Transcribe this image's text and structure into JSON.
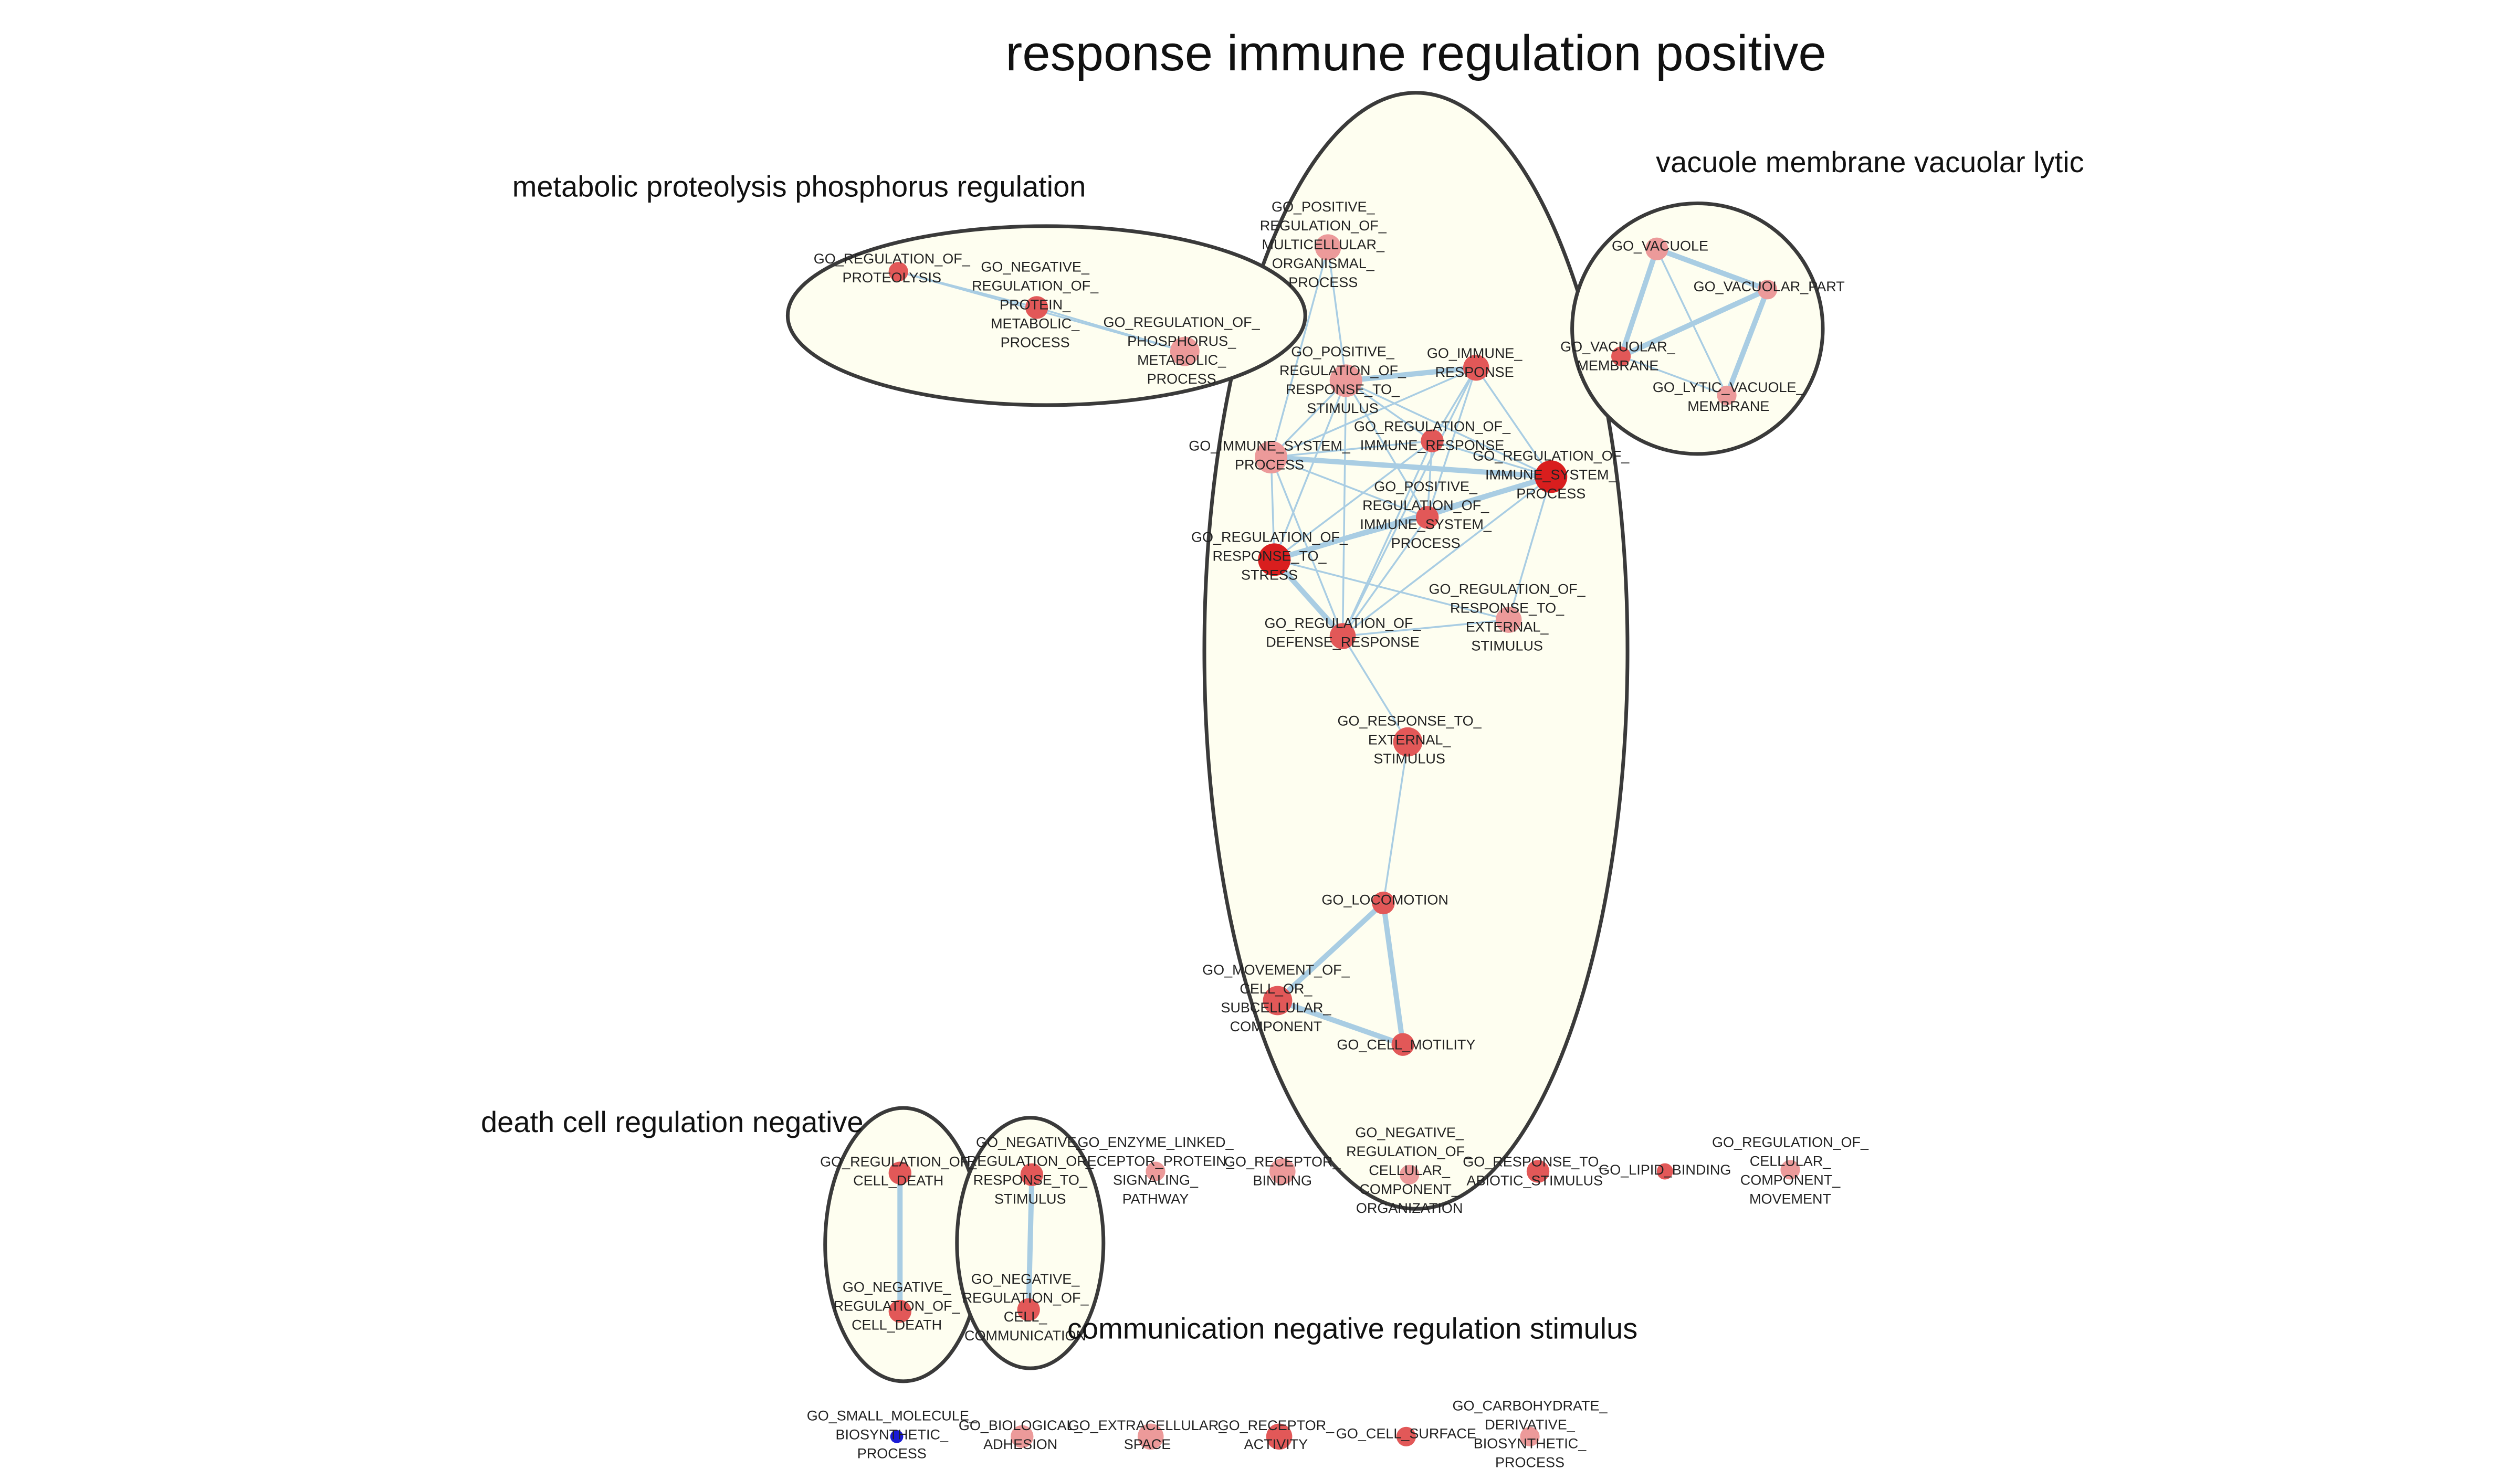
{
  "colors": {
    "edge": "#a9cde3",
    "cluster_fill": "#fefef0",
    "cluster_stroke": "#3a3a3a",
    "node_strong": "#d91e1e",
    "node_medium": "#e25858",
    "node_light": "#ec9a9a",
    "node_blue": "#1a1ad6"
  },
  "clusters": [
    {
      "id": "immune",
      "title": "response immune regulation positive"
    },
    {
      "id": "metabolic",
      "title": "metabolic proteolysis phosphorus regulation"
    },
    {
      "id": "vacuole",
      "title": "vacuole membrane vacuolar lytic"
    },
    {
      "id": "death",
      "title": "death cell regulation negative"
    },
    {
      "id": "communication",
      "title": "communication negative regulation stimulus"
    }
  ],
  "nodes": [
    {
      "id": "reg_proteolysis",
      "label": [
        "GO_REGULATION_OF_",
        "PROTEOLYSIS"
      ],
      "color": "node_medium"
    },
    {
      "id": "neg_reg_protein_metabolic",
      "label": [
        "GO_NEGATIVE_",
        "REGULATION_OF_",
        "PROTEIN_",
        "METABOLIC_",
        "PROCESS"
      ],
      "color": "node_medium"
    },
    {
      "id": "reg_phosphorus",
      "label": [
        "GO_REGULATION_OF_",
        "PHOSPHORUS_",
        "METABOLIC_",
        "PROCESS"
      ],
      "color": "node_light"
    },
    {
      "id": "pos_reg_multicellular",
      "label": [
        "GO_POSITIVE_",
        "REGULATION_OF_",
        "MULTICELLULAR_",
        "ORGANISMAL_",
        "PROCESS"
      ],
      "color": "node_light"
    },
    {
      "id": "pos_reg_response_stimulus",
      "label": [
        "GO_POSITIVE_",
        "REGULATION_OF_",
        "RESPONSE_TO_",
        "STIMULUS"
      ],
      "color": "node_light"
    },
    {
      "id": "immune_response",
      "label": [
        "GO_IMMUNE_",
        "RESPONSE"
      ],
      "color": "node_medium"
    },
    {
      "id": "reg_immune_response",
      "label": [
        "GO_REGULATION_OF_",
        "IMMUNE_RESPONSE"
      ],
      "color": "node_medium"
    },
    {
      "id": "immune_system_process",
      "label": [
        "GO_IMMUNE_SYSTEM_",
        "PROCESS"
      ],
      "color": "node_light"
    },
    {
      "id": "reg_immune_system_process",
      "label": [
        "GO_REGULATION_OF_",
        "IMMUNE_SYSTEM_",
        "PROCESS"
      ],
      "color": "node_strong"
    },
    {
      "id": "pos_reg_immune_system_process",
      "label": [
        "GO_POSITIVE_",
        "REGULATION_OF_",
        "IMMUNE_SYSTEM_",
        "PROCESS"
      ],
      "color": "node_medium"
    },
    {
      "id": "reg_response_stress",
      "label": [
        "GO_REGULATION_OF_",
        "RESPONSE_TO_",
        "STRESS"
      ],
      "color": "node_strong"
    },
    {
      "id": "reg_response_external",
      "label": [
        "GO_REGULATION_OF_",
        "RESPONSE_TO_",
        "EXTERNAL_",
        "STIMULUS"
      ],
      "color": "node_light"
    },
    {
      "id": "reg_defense_response",
      "label": [
        "GO_REGULATION_OF_",
        "DEFENSE_RESPONSE"
      ],
      "color": "node_medium"
    },
    {
      "id": "response_external",
      "label": [
        "GO_RESPONSE_TO_",
        "EXTERNAL_",
        "STIMULUS"
      ],
      "color": "node_medium"
    },
    {
      "id": "locomotion",
      "label": [
        "GO_LOCOMOTION"
      ],
      "color": "node_medium"
    },
    {
      "id": "movement_cell",
      "label": [
        "GO_MOVEMENT_OF_",
        "CELL_OR_",
        "SUBCELLULAR_",
        "COMPONENT"
      ],
      "color": "node_medium"
    },
    {
      "id": "cell_motility",
      "label": [
        "GO_CELL_MOTILITY"
      ],
      "color": "node_medium"
    },
    {
      "id": "vacuole",
      "label": [
        "GO_VACUOLE"
      ],
      "color": "node_light"
    },
    {
      "id": "vacuolar_part",
      "label": [
        "GO_VACUOLAR_PART"
      ],
      "color": "node_light"
    },
    {
      "id": "vacuolar_membrane",
      "label": [
        "GO_VACUOLAR_",
        "MEMBRANE"
      ],
      "color": "node_medium"
    },
    {
      "id": "lytic_vacuole_membrane",
      "label": [
        "GO_LYTIC_VACUOLE_",
        "MEMBRANE"
      ],
      "color": "node_light"
    },
    {
      "id": "reg_cell_death",
      "label": [
        "GO_REGULATION_OF_",
        "CELL_DEATH"
      ],
      "color": "node_medium"
    },
    {
      "id": "neg_reg_cell_death",
      "label": [
        "GO_NEGATIVE_",
        "REGULATION_OF_",
        "CELL_DEATH"
      ],
      "color": "node_medium"
    },
    {
      "id": "neg_reg_response_stimulus",
      "label": [
        "GO_NEGATIVE_",
        "REGULATION_OF_",
        "RESPONSE_TO_",
        "STIMULUS"
      ],
      "color": "node_medium"
    },
    {
      "id": "neg_reg_cell_communication",
      "label": [
        "GO_NEGATIVE_",
        "REGULATION_OF_",
        "CELL_",
        "COMMUNICATION"
      ],
      "color": "node_medium"
    },
    {
      "id": "enzyme_linked",
      "label": [
        "GO_ENZYME_LINKED_",
        "RECEPTOR_PROTEIN_",
        "SIGNALING_",
        "PATHWAY"
      ],
      "color": "node_light"
    },
    {
      "id": "receptor_binding",
      "label": [
        "GO_RECEPTOR_",
        "BINDING"
      ],
      "color": "node_light"
    },
    {
      "id": "neg_reg_cellular_component",
      "label": [
        "GO_NEGATIVE_",
        "REGULATION_OF_",
        "CELLULAR_",
        "COMPONENT_",
        "ORGANIZATION"
      ],
      "color": "node_light"
    },
    {
      "id": "response_abiotic",
      "label": [
        "GO_RESPONSE_TO_",
        "ABIOTIC_STIMULUS"
      ],
      "color": "node_medium"
    },
    {
      "id": "lipid_binding",
      "label": [
        "GO_LIPID_BINDING"
      ],
      "color": "node_medium"
    },
    {
      "id": "reg_cellular_component_movement",
      "label": [
        "GO_REGULATION_OF_",
        "CELLULAR_",
        "COMPONENT_",
        "MOVEMENT"
      ],
      "color": "node_light"
    },
    {
      "id": "small_molecule",
      "label": [
        "GO_SMALL_MOLECULE_",
        "BIOSYNTHETIC_",
        "PROCESS"
      ],
      "color": "node_blue"
    },
    {
      "id": "biological_adhesion",
      "label": [
        "GO_BIOLOGICAL_",
        "ADHESION"
      ],
      "color": "node_light"
    },
    {
      "id": "extracellular_space",
      "label": [
        "GO_EXTRACELLULAR_",
        "SPACE"
      ],
      "color": "node_light"
    },
    {
      "id": "receptor_activity",
      "label": [
        "GO_RECEPTOR_",
        "ACTIVITY"
      ],
      "color": "node_medium"
    },
    {
      "id": "cell_surface",
      "label": [
        "GO_CELL_SURFACE"
      ],
      "color": "node_medium"
    },
    {
      "id": "carbohydrate",
      "label": [
        "GO_CARBOHYDRATE_",
        "DERIVATIVE_",
        "BIOSYNTHETIC_",
        "PROCESS"
      ],
      "color": "node_light"
    }
  ],
  "edges": [
    [
      "reg_proteolysis",
      "neg_reg_protein_metabolic"
    ],
    [
      "neg_reg_protein_metabolic",
      "reg_phosphorus"
    ],
    [
      "reg_proteolysis",
      "reg_phosphorus"
    ],
    [
      "pos_reg_multicellular",
      "pos_reg_response_stimulus"
    ],
    [
      "pos_reg_multicellular",
      "immune_system_process"
    ],
    [
      "pos_reg_response_stimulus",
      "immune_response"
    ],
    [
      "pos_reg_response_stimulus",
      "reg_immune_response"
    ],
    [
      "pos_reg_response_stimulus",
      "immune_system_process"
    ],
    [
      "pos_reg_response_stimulus",
      "reg_immune_system_process"
    ],
    [
      "pos_reg_response_stimulus",
      "pos_reg_immune_system_process"
    ],
    [
      "pos_reg_response_stimulus",
      "reg_response_stress"
    ],
    [
      "pos_reg_response_stimulus",
      "reg_defense_response"
    ],
    [
      "immune_response",
      "reg_immune_response"
    ],
    [
      "immune_response",
      "immune_system_process"
    ],
    [
      "immune_response",
      "reg_immune_system_process"
    ],
    [
      "immune_response",
      "pos_reg_immune_system_process"
    ],
    [
      "immune_response",
      "reg_defense_response"
    ],
    [
      "reg_immune_response",
      "immune_system_process"
    ],
    [
      "reg_immune_response",
      "reg_immune_system_process"
    ],
    [
      "reg_immune_response",
      "pos_reg_immune_system_process"
    ],
    [
      "reg_immune_response",
      "reg_response_stress"
    ],
    [
      "reg_immune_response",
      "reg_defense_response"
    ],
    [
      "immune_system_process",
      "reg_immune_system_process"
    ],
    [
      "immune_system_process",
      "pos_reg_immune_system_process"
    ],
    [
      "immune_system_process",
      "reg_response_stress"
    ],
    [
      "immune_system_process",
      "reg_defense_response"
    ],
    [
      "reg_immune_system_process",
      "pos_reg_immune_system_process"
    ],
    [
      "reg_immune_system_process",
      "reg_response_stress"
    ],
    [
      "reg_immune_system_process",
      "reg_defense_response"
    ],
    [
      "reg_immune_system_process",
      "reg_response_external"
    ],
    [
      "pos_reg_immune_system_process",
      "reg_response_stress"
    ],
    [
      "pos_reg_immune_system_process",
      "reg_defense_response"
    ],
    [
      "reg_response_stress",
      "reg_defense_response"
    ],
    [
      "reg_response_stress",
      "reg_response_external"
    ],
    [
      "reg_defense_response",
      "reg_response_external"
    ],
    [
      "reg_defense_response",
      "response_external"
    ],
    [
      "response_external",
      "locomotion"
    ],
    [
      "locomotion",
      "movement_cell"
    ],
    [
      "locomotion",
      "cell_motility"
    ],
    [
      "movement_cell",
      "cell_motility"
    ],
    [
      "vacuole",
      "vacuolar_part"
    ],
    [
      "vacuole",
      "vacuolar_membrane"
    ],
    [
      "vacuole",
      "lytic_vacuole_membrane"
    ],
    [
      "vacuolar_part",
      "vacuolar_membrane"
    ],
    [
      "vacuolar_part",
      "lytic_vacuole_membrane"
    ],
    [
      "vacuolar_membrane",
      "lytic_vacuole_membrane"
    ],
    [
      "reg_cell_death",
      "neg_reg_cell_death"
    ],
    [
      "neg_reg_response_stimulus",
      "neg_reg_cell_communication"
    ]
  ]
}
